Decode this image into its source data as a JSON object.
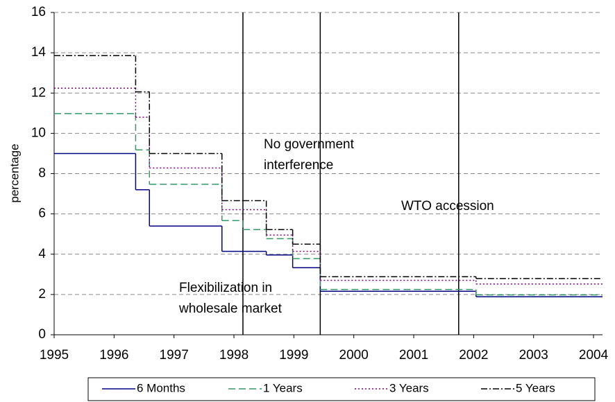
{
  "chart_data": {
    "type": "step",
    "y_label": "percentage",
    "x": [
      1995,
      1996.36,
      1996.59,
      1997.8,
      1998.15,
      1998.54,
      1998.98,
      1999.44,
      2002.04
    ],
    "series": [
      {
        "name": "6 Months",
        "color": "#000080",
        "dash": "solid",
        "values": [
          9,
          7.2,
          5.4,
          4.14,
          4.14,
          3.96,
          3.33,
          2.16,
          1.89
        ]
      },
      {
        "name": "1 Years",
        "color": "#339966",
        "dash": "dashed",
        "values": [
          10.98,
          9.18,
          7.47,
          5.67,
          5.22,
          4.77,
          3.78,
          2.25,
          1.98
        ]
      },
      {
        "name": "3 Years",
        "color": "#800080",
        "dash": "dotted",
        "values": [
          12.24,
          10.8,
          8.28,
          6.21,
          6.21,
          4.95,
          4.14,
          2.7,
          2.52
        ]
      },
      {
        "name": "5 Years",
        "color": "#000000",
        "dash": "dashdot",
        "values": [
          13.86,
          12.06,
          9.0,
          6.66,
          6.66,
          5.22,
          4.5,
          2.88,
          2.79
        ]
      }
    ],
    "events": [
      {
        "x": 1998.15,
        "lines": [
          "Flexibilization in",
          "wholesale market"
        ]
      },
      {
        "x": 1999.44,
        "lines": [
          "No government",
          "interference"
        ]
      },
      {
        "x": 2001.75,
        "lines": [
          "WTO accession"
        ]
      }
    ],
    "xlim": [
      1995,
      2004.15
    ],
    "xticks": [
      1995,
      1996,
      1997,
      1998,
      1999,
      2000,
      2001,
      2002,
      2003,
      2004
    ],
    "ylim": [
      0,
      16
    ],
    "yticks": [
      0,
      2,
      4,
      6,
      8,
      10,
      12,
      14,
      16
    ],
    "grid": true,
    "legend": "bottom"
  }
}
